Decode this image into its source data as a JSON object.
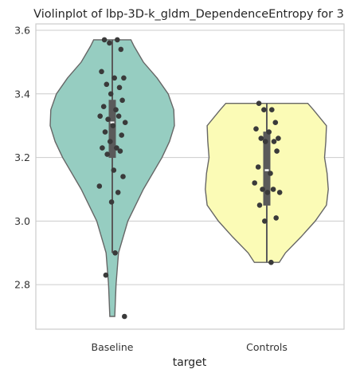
{
  "chart_data": {
    "type": "violin",
    "title": "Violinplot of lbp-3D-k_gldm_DependenceEntropy for 3",
    "xlabel": "target",
    "ylabel": "",
    "ylim": [
      2.66,
      3.62
    ],
    "yticks": [
      2.8,
      3.0,
      3.2,
      3.4,
      3.6
    ],
    "grid": true,
    "categories": [
      "Baseline",
      "Controls"
    ],
    "colors": {
      "Baseline": "#96cdc1",
      "Controls": "#fbfbb6"
    },
    "groups": [
      {
        "name": "Baseline",
        "min": 2.7,
        "q1": 3.2,
        "median": 3.31,
        "q3": 3.38,
        "max": 3.57,
        "whisker_low": 2.9,
        "whisker_high": 3.57,
        "density": [
          [
            2.7,
            0.04
          ],
          [
            2.8,
            0.06
          ],
          [
            2.9,
            0.1
          ],
          [
            3.0,
            0.25
          ],
          [
            3.1,
            0.5
          ],
          [
            3.2,
            0.8
          ],
          [
            3.25,
            0.92
          ],
          [
            3.3,
            1.0
          ],
          [
            3.35,
            0.99
          ],
          [
            3.4,
            0.9
          ],
          [
            3.45,
            0.72
          ],
          [
            3.5,
            0.5
          ],
          [
            3.55,
            0.35
          ],
          [
            3.57,
            0.3
          ]
        ],
        "points": [
          3.57,
          3.57,
          3.56,
          3.54,
          3.47,
          3.45,
          3.45,
          3.43,
          3.42,
          3.4,
          3.38,
          3.36,
          3.35,
          3.33,
          3.33,
          3.32,
          3.31,
          3.3,
          3.28,
          3.27,
          3.25,
          3.23,
          3.23,
          3.22,
          3.21,
          3.16,
          3.14,
          3.11,
          3.09,
          3.06,
          2.9,
          2.83,
          2.7
        ]
      },
      {
        "name": "Controls",
        "min": 2.87,
        "q1": 3.05,
        "median": 3.16,
        "q3": 3.28,
        "max": 3.37,
        "whisker_low": 2.87,
        "whisker_high": 3.37,
        "density": [
          [
            2.87,
            0.2
          ],
          [
            2.9,
            0.3
          ],
          [
            2.95,
            0.55
          ],
          [
            3.0,
            0.78
          ],
          [
            3.05,
            0.96
          ],
          [
            3.1,
            0.99
          ],
          [
            3.15,
            0.97
          ],
          [
            3.2,
            0.93
          ],
          [
            3.25,
            0.95
          ],
          [
            3.3,
            0.96
          ],
          [
            3.35,
            0.75
          ],
          [
            3.37,
            0.66
          ]
        ],
        "points": [
          3.37,
          3.35,
          3.35,
          3.31,
          3.29,
          3.28,
          3.26,
          3.26,
          3.25,
          3.25,
          3.22,
          3.17,
          3.15,
          3.12,
          3.1,
          3.1,
          3.09,
          3.09,
          3.05,
          3.01,
          3.0,
          2.87
        ]
      }
    ]
  }
}
